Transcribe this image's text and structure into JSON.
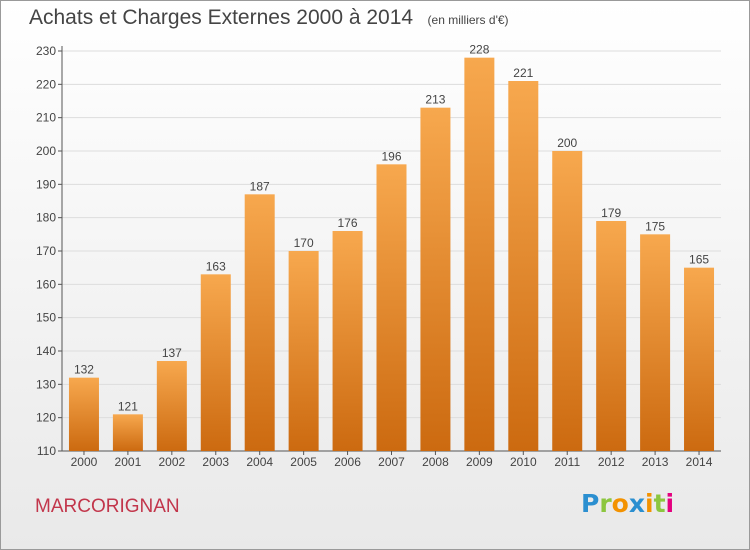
{
  "title": "Achats et Charges Externes 2000 à 2014",
  "subtitle": "(en milliers d'€)",
  "commune": "MARCORIGNAN",
  "logo": {
    "letters": [
      "P",
      "r",
      "o",
      "x",
      "i",
      "t",
      "i"
    ],
    "colors": [
      "#2b8fd0",
      "#8cc63f",
      "#f39200",
      "#2b8fd0",
      "#f39200",
      "#8cc63f",
      "#e4007f"
    ]
  },
  "colors": {
    "bar_light": "#f7a84e",
    "bar_dark": "#cc6a10",
    "grid": "#dddddd",
    "axis": "#555555",
    "text": "#444444"
  },
  "chart_data": {
    "type": "bar",
    "title": "Achats et Charges Externes 2000 à 2014",
    "xlabel": "",
    "ylabel": "",
    "categories": [
      "2000",
      "2001",
      "2002",
      "2003",
      "2004",
      "2005",
      "2006",
      "2007",
      "2008",
      "2009",
      "2010",
      "2011",
      "2012",
      "2013",
      "2014"
    ],
    "values": [
      132,
      121,
      137,
      163,
      187,
      170,
      176,
      196,
      213,
      228,
      221,
      200,
      179,
      175,
      165
    ],
    "ylim": [
      110,
      230
    ],
    "yticks": [
      110,
      120,
      130,
      140,
      150,
      160,
      170,
      180,
      190,
      200,
      210,
      220,
      230
    ],
    "grid": true,
    "legend": "none"
  }
}
